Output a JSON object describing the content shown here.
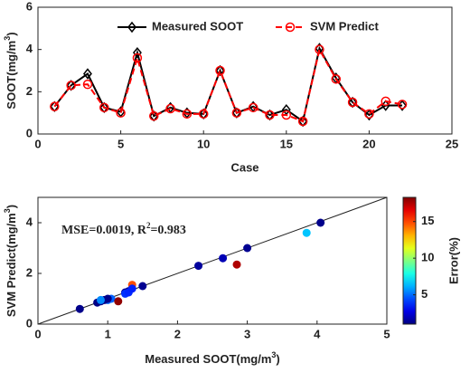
{
  "chart_data": [
    {
      "type": "line",
      "xlabel": "Case",
      "ylabel": [
        "SOOT(mg/m",
        "3",
        ")"
      ],
      "x": [
        1,
        2,
        3,
        4,
        5,
        6,
        7,
        8,
        9,
        10,
        11,
        12,
        13,
        14,
        15,
        16,
        17,
        18,
        19,
        20,
        21,
        22
      ],
      "series": [
        {
          "name": "Measured SOOT",
          "color": "#000000",
          "marker": "diamond",
          "dash": false,
          "values": [
            1.3,
            2.3,
            2.85,
            1.25,
            1.05,
            3.85,
            0.85,
            1.25,
            1.0,
            0.95,
            3.0,
            1.0,
            1.3,
            0.9,
            1.15,
            0.6,
            4.05,
            2.65,
            1.5,
            0.9,
            1.35,
            1.35
          ]
        },
        {
          "name": "SVM Predict",
          "color": "#ff0000",
          "marker": "circle",
          "dash": true,
          "values": [
            1.3,
            2.3,
            2.35,
            1.25,
            1.0,
            3.6,
            0.85,
            1.2,
            0.95,
            0.95,
            3.0,
            1.0,
            1.25,
            0.9,
            0.9,
            0.6,
            4.0,
            2.6,
            1.5,
            0.95,
            1.55,
            1.4
          ]
        }
      ],
      "xlim": [
        0,
        25
      ],
      "xticks": [
        0,
        5,
        10,
        15,
        20,
        25
      ],
      "ylim": [
        0,
        6
      ],
      "yticks": [
        0,
        2,
        4,
        6
      ],
      "legend": "top"
    },
    {
      "type": "scatter",
      "xlabel": [
        "Measured SOOT(mg/m",
        "3",
        ")"
      ],
      "ylabel": [
        "SVM Predict(mg/m",
        "3",
        ")"
      ],
      "annotation": [
        "MSE=0.0019, R",
        "2",
        "=0.983"
      ],
      "colorbar_label": "Error(%)",
      "colormap": "jet",
      "x": [
        1.3,
        2.3,
        2.85,
        1.25,
        1.05,
        3.85,
        0.85,
        1.25,
        1.0,
        0.95,
        3.0,
        1.0,
        1.3,
        0.9,
        1.15,
        0.6,
        4.05,
        2.65,
        1.5,
        0.9,
        1.35,
        1.35
      ],
      "values": [
        1.3,
        2.3,
        2.35,
        1.25,
        1.0,
        3.6,
        0.85,
        1.2,
        0.95,
        0.95,
        3.0,
        1.0,
        1.25,
        0.9,
        0.9,
        0.6,
        4.0,
        2.6,
        1.5,
        0.95,
        1.55,
        1.4
      ],
      "color_values": [
        1.2,
        1.5,
        17.5,
        1.3,
        4.8,
        6.5,
        1.1,
        4,
        5,
        1.2,
        1.3,
        1.2,
        3.8,
        1.1,
        18,
        1.2,
        1.2,
        1.9,
        1.3,
        5.5,
        14.8,
        3.7
      ],
      "xlim": [
        0,
        5
      ],
      "xticks": [
        0,
        1,
        2,
        3,
        4,
        5
      ],
      "ylim": [
        0,
        5
      ],
      "yticks": [
        0,
        2,
        4
      ],
      "clim": [
        1,
        18.3
      ],
      "cticks": [
        5,
        10,
        15
      ]
    }
  ]
}
